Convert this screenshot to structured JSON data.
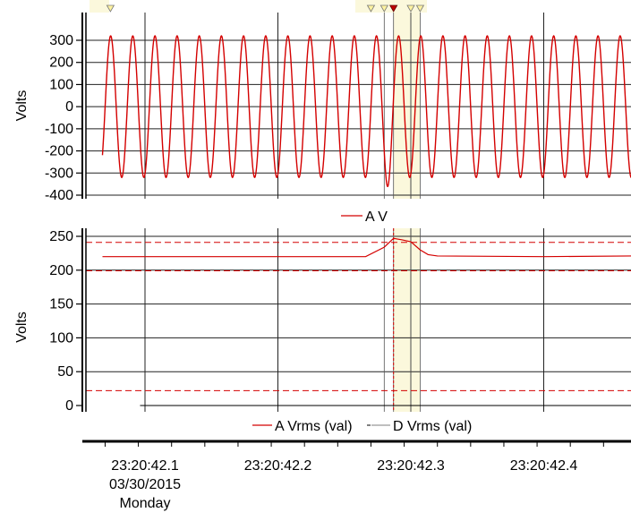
{
  "chart_data": [
    {
      "type": "line",
      "ylabel": "Volts",
      "ylim": [
        -400,
        350
      ],
      "yticks": [
        300,
        200,
        100,
        0,
        -100,
        -200,
        -300,
        -400
      ],
      "grid": true,
      "legend_position": "bottom-center",
      "series": [
        {
          "name": "A V",
          "color": "#d40000",
          "description_values": {
            "waveform": "sine",
            "amplitude_volts": 320,
            "frequency_hz": 60,
            "transient_peak_volts": 360,
            "transient_trough_volts": -365,
            "transient_time": "23:20:42.283"
          }
        }
      ]
    },
    {
      "type": "line",
      "ylabel": "Volts",
      "ylim": [
        0,
        260
      ],
      "yticks": [
        250,
        200,
        150,
        100,
        50,
        0
      ],
      "grid": true,
      "legend_position": "bottom-center",
      "limit_lines": [
        241,
        199,
        22
      ],
      "series": [
        {
          "name": "A Vrms (val)",
          "color": "#d40000",
          "x": [
            "23:20:42.068",
            "23:20:42.266",
            "23:20:42.280",
            "23:20:42.287",
            "23:20:42.293",
            "23:20:42.300",
            "23:20:42.307",
            "23:20:42.313",
            "23:20:42.320",
            "23:20:42.400",
            "23:20:42.466"
          ],
          "values": [
            220,
            220,
            234,
            247,
            245,
            242,
            230,
            223,
            221,
            220,
            221
          ]
        },
        {
          "name": "D Vrms (val)",
          "color": "#999999",
          "x": [
            "23:20:42.068"
          ],
          "values": [
            0
          ]
        }
      ]
    }
  ],
  "x_axis": {
    "ticks": [
      {
        "t": "23:20:42.1",
        "line1": "23:20:42.1",
        "line2": "03/30/2015",
        "line3": "Monday"
      },
      {
        "t": "23:20:42.2",
        "line1": "23:20:42.2",
        "line2": "",
        "line3": ""
      },
      {
        "t": "23:20:42.3",
        "line1": "23:20:42.3",
        "line2": "",
        "line3": ""
      },
      {
        "t": "23:20:42.4",
        "line1": "23:20:42.4",
        "line2": "",
        "line3": ""
      }
    ],
    "event_markers": [
      "23:20:42.074",
      "23:20:42.270",
      "23:20:42.280",
      "23:20:42.287",
      "23:20:42.300",
      "23:20:42.307"
    ],
    "highlight_range": [
      "23:20:42.287",
      "23:20:42.307"
    ]
  },
  "colors": {
    "trace": "#d40000",
    "highlight": "#fbf8dc",
    "marker_fill": "#fff3a0"
  }
}
